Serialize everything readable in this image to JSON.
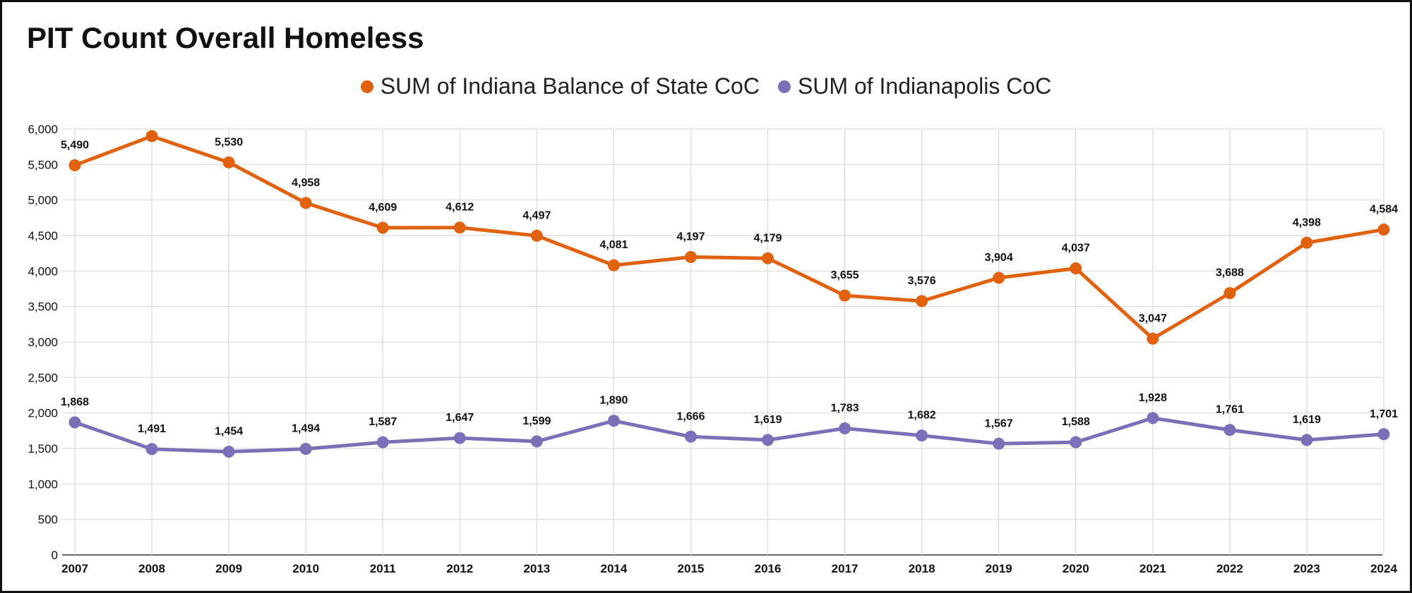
{
  "chart_data": {
    "type": "line",
    "title": "PIT Count Overall Homeless",
    "xlabel": "",
    "ylabel": "",
    "ylim": [
      0,
      6000
    ],
    "y_ticks": [
      "0",
      "500",
      "1,000",
      "1,500",
      "2,000",
      "2,500",
      "3,000",
      "3,500",
      "4,000",
      "4,500",
      "5,000",
      "5,500",
      "6,000"
    ],
    "y_tick_values": [
      0,
      500,
      1000,
      1500,
      2000,
      2500,
      3000,
      3500,
      4000,
      4500,
      5000,
      5500,
      6000
    ],
    "categories": [
      "2007",
      "2008",
      "2009",
      "2010",
      "2011",
      "2012",
      "2013",
      "2014",
      "2015",
      "2016",
      "2017",
      "2018",
      "2019",
      "2020",
      "2021",
      "2022",
      "2023",
      "2024"
    ],
    "grid": true,
    "legend_position": "top-center",
    "series": [
      {
        "name": "SUM of Indiana Balance of State CoC",
        "color": "#e0620f",
        "values": [
          5490,
          5900,
          5530,
          4958,
          4609,
          4612,
          4497,
          4081,
          4197,
          4179,
          3655,
          3576,
          3904,
          4037,
          3047,
          3688,
          4398,
          4584
        ],
        "labels": [
          "5,490",
          "",
          "5,530",
          "4,958",
          "4,609",
          "4,612",
          "4,497",
          "4,081",
          "4,197",
          "4,179",
          "3,655",
          "3,576",
          "3,904",
          "4,037",
          "3,047",
          "3,688",
          "4,398",
          "4,584"
        ]
      },
      {
        "name": "SUM of Indianapolis CoC",
        "color": "#7b6fb8",
        "values": [
          1868,
          1491,
          1454,
          1494,
          1587,
          1647,
          1599,
          1890,
          1666,
          1619,
          1783,
          1682,
          1567,
          1588,
          1928,
          1761,
          1619,
          1701
        ],
        "labels": [
          "1,868",
          "1,491",
          "1,454",
          "1,494",
          "1,587",
          "1,647",
          "1,599",
          "1,890",
          "1,666",
          "1,619",
          "1,783",
          "1,682",
          "1,567",
          "1,588",
          "1,928",
          "1,761",
          "1,619",
          "1,701"
        ]
      }
    ]
  }
}
